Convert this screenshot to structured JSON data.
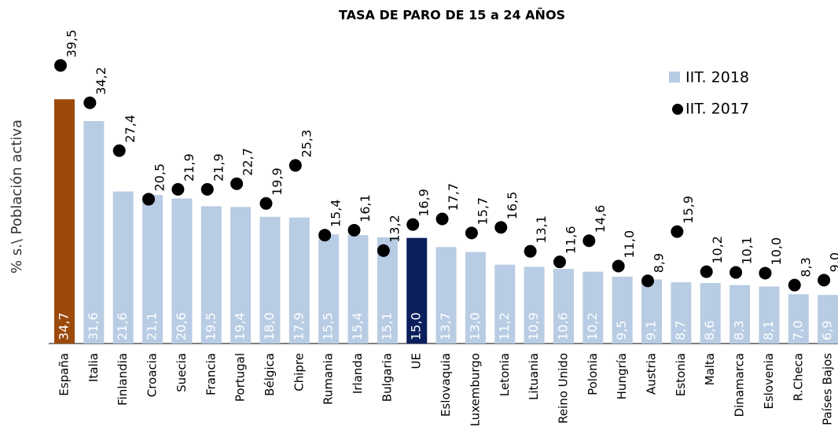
{
  "chart_data": {
    "type": "bar_dot",
    "title": "TASA DE PARO DE 15 a 24 AÑOS",
    "y_label": "% s.\\ Población activa",
    "categories": [
      "España",
      "Italia",
      "Finlandia",
      "Croacia",
      "Suecia",
      "Francia",
      "Portugal",
      "Bélgica",
      "Chipre",
      "Rumania",
      "Irlanda",
      "Bulgaria",
      "UE",
      "Eslovaquia",
      "Luxemburgo",
      "Letonia",
      "Lituania",
      "Reino Unido",
      "Polonia",
      "Hungría",
      "Austria",
      "Estonia",
      "Malta",
      "Dinamarca",
      "Eslovenia",
      "R.Checa",
      "Países Bajos"
    ],
    "series": [
      {
        "name": "IIT. 2018",
        "color": "#b8cce4",
        "colors": [
          "#9c4a0c",
          "#b8cce4",
          "#b8cce4",
          "#b8cce4",
          "#b8cce4",
          "#b8cce4",
          "#b8cce4",
          "#b8cce4",
          "#b8cce4",
          "#b8cce4",
          "#b8cce4",
          "#b8cce4",
          "#0c1f5c",
          "#b8cce4",
          "#b8cce4",
          "#b8cce4",
          "#b8cce4",
          "#b8cce4",
          "#b8cce4",
          "#b8cce4",
          "#b8cce4",
          "#b8cce4",
          "#b8cce4",
          "#b8cce4",
          "#b8cce4",
          "#b8cce4",
          "#b8cce4"
        ],
        "values": [
          34.7,
          31.6,
          21.6,
          21.1,
          20.6,
          19.5,
          19.4,
          18.0,
          17.9,
          15.5,
          15.4,
          15.1,
          15.0,
          13.7,
          13.0,
          11.2,
          10.9,
          10.6,
          10.2,
          9.5,
          9.1,
          8.7,
          8.6,
          8.3,
          8.1,
          7.0,
          6.9
        ],
        "value_labels": [
          "34,7",
          "31,6",
          "21,6",
          "21,1",
          "20,6",
          "19,5",
          "19,4",
          "18,0",
          "17,9",
          "15,5",
          "15,4",
          "15,1",
          "15,0",
          "13,7",
          "13,0",
          "11,2",
          "10,9",
          "10,6",
          "10,2",
          "9,5",
          "9,1",
          "8,7",
          "8,6",
          "8,3",
          "8,1",
          "7,0",
          "6,9"
        ]
      },
      {
        "name": "IIT. 2017",
        "color": "#000000",
        "values": [
          39.5,
          34.2,
          27.4,
          20.5,
          21.9,
          21.9,
          22.7,
          19.9,
          25.3,
          15.4,
          16.1,
          13.2,
          16.9,
          17.7,
          15.7,
          16.5,
          13.1,
          11.6,
          14.6,
          11.0,
          8.9,
          15.9,
          10.2,
          10.1,
          10.0,
          8.3,
          9.0
        ],
        "value_labels": [
          "39,5",
          "34,2",
          "27,4",
          "20,5",
          "21,9",
          "21,9",
          "22,7",
          "19,9",
          "25,3",
          "15,4",
          "16,1",
          "13,2",
          "16,9",
          "17,7",
          "15,7",
          "16,5",
          "13,1",
          "11,6",
          "14,6",
          "11,0",
          "8,9",
          "15,9",
          "10,2",
          "10,1",
          "10,0",
          "8,3",
          "9,0"
        ]
      }
    ],
    "ylim": [
      0,
      45
    ],
    "legend": "top-right"
  }
}
